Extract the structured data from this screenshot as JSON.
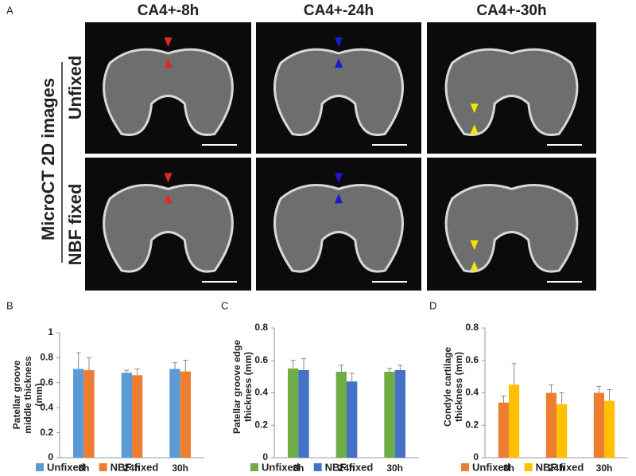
{
  "figure": {
    "panel_label": "A",
    "column_titles": [
      "CA4+-8h",
      "CA4+-24h",
      "CA4+-30h"
    ],
    "row_labels": [
      "Unfixed",
      "NBF fixed"
    ],
    "side_label": "MicroCT 2D images"
  },
  "chart_data": [
    {
      "type": "bar",
      "panel_label": "B",
      "ylabel": "Patellar groove middle thickness (mm)",
      "categories": [
        "8h",
        "24h",
        "30h"
      ],
      "series": [
        {
          "name": "Unfixed",
          "color": "#5b9bd5",
          "values": [
            0.71,
            0.68,
            0.71
          ],
          "errors": [
            0.13,
            0.02,
            0.05
          ]
        },
        {
          "name": "NBF fixed",
          "color": "#ed7d31",
          "values": [
            0.7,
            0.66,
            0.69
          ],
          "errors": [
            0.1,
            0.05,
            0.09
          ]
        }
      ],
      "ylim": [
        0,
        1
      ],
      "yticks": [
        0,
        0.2,
        0.4,
        0.6,
        0.8,
        1
      ]
    },
    {
      "type": "bar",
      "panel_label": "C",
      "ylabel": "Patellar groove edge thickness (mm)",
      "categories": [
        "8h",
        "24h",
        "30h"
      ],
      "series": [
        {
          "name": "Unfixed",
          "color": "#70ad47",
          "values": [
            0.55,
            0.53,
            0.53
          ],
          "errors": [
            0.05,
            0.04,
            0.02
          ]
        },
        {
          "name": "NBF fixed",
          "color": "#4472c4",
          "values": [
            0.54,
            0.47,
            0.54
          ],
          "errors": [
            0.07,
            0.05,
            0.03
          ]
        }
      ],
      "ylim": [
        0,
        0.8
      ],
      "yticks": [
        0,
        0.2,
        0.4,
        0.6,
        0.8
      ]
    },
    {
      "type": "bar",
      "panel_label": "D",
      "ylabel": "Condyle cartilage thickness (mm)",
      "categories": [
        "8h",
        "24h",
        "30h"
      ],
      "series": [
        {
          "name": "Unfixed",
          "color": "#ed7d31",
          "values": [
            0.34,
            0.4,
            0.4
          ],
          "errors": [
            0.04,
            0.05,
            0.04
          ]
        },
        {
          "name": "NBF fixed",
          "color": "#ffc000",
          "values": [
            0.45,
            0.33,
            0.35
          ],
          "errors": [
            0.13,
            0.07,
            0.07
          ]
        }
      ],
      "ylim": [
        0,
        0.8
      ],
      "yticks": [
        0,
        0.2,
        0.4,
        0.6,
        0.8
      ]
    }
  ]
}
